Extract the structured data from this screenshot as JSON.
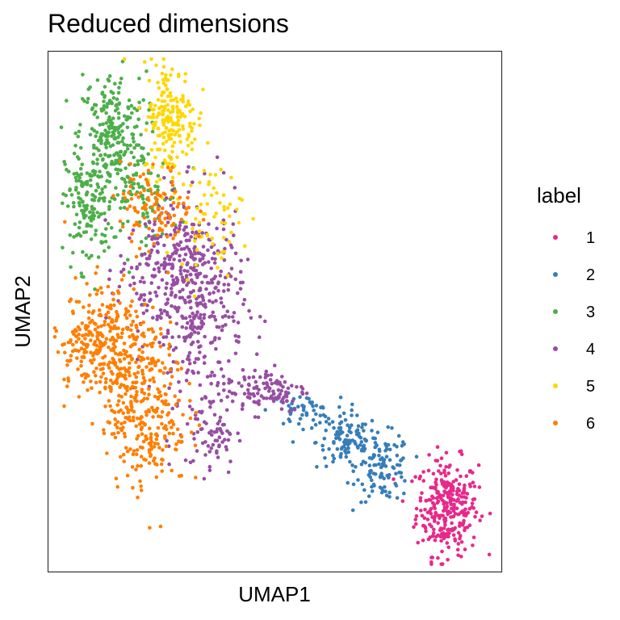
{
  "chart_data": {
    "type": "scatter",
    "title": "Reduced dimensions",
    "xlabel": "UMAP1",
    "ylabel": "UMAP2",
    "grid": false,
    "axis_ticks": false,
    "legend": {
      "title": "label",
      "placement": "right",
      "entries": [
        {
          "label": "1",
          "color": "#e7298a"
        },
        {
          "label": "2",
          "color": "#377eb8"
        },
        {
          "label": "3",
          "color": "#4daf4a"
        },
        {
          "label": "4",
          "color": "#984ea3"
        },
        {
          "label": "5",
          "color": "#ffd700"
        },
        {
          "label": "6",
          "color": "#ff7f00"
        }
      ]
    },
    "xlim": [
      0,
      100
    ],
    "ylim": [
      0,
      100
    ],
    "series": [
      {
        "name": "1",
        "color": "#e7298a",
        "n": 300,
        "clusters": [
          {
            "cx": 88,
            "cy": 12.5,
            "sx": 3.4,
            "sy": 4.6,
            "w": 1
          }
        ]
      },
      {
        "name": "2",
        "color": "#377eb8",
        "n": 270,
        "clusters": [
          {
            "cx": 66,
            "cy": 25,
            "sx": 3.4,
            "sy": 2.6,
            "w": 0.4
          },
          {
            "cx": 74,
            "cy": 20,
            "sx": 3.0,
            "sy": 3.2,
            "w": 0.4
          },
          {
            "cx": 56,
            "cy": 31,
            "sx": 3.5,
            "sy": 1.5,
            "w": 0.2
          }
        ]
      },
      {
        "name": "3",
        "color": "#4daf4a",
        "n": 480,
        "clusters": [
          {
            "cx": 14,
            "cy": 84,
            "sx": 3.8,
            "sy": 6.0,
            "w": 0.5
          },
          {
            "cx": 9,
            "cy": 70,
            "sx": 2.6,
            "sy": 6.0,
            "w": 0.3
          },
          {
            "cx": 20,
            "cy": 72,
            "sx": 4.6,
            "sy": 4.6,
            "w": 0.2
          }
        ]
      },
      {
        "name": "4",
        "color": "#984ea3",
        "n": 700,
        "clusters": [
          {
            "cx": 33,
            "cy": 52,
            "sx": 5.0,
            "sy": 9.5,
            "w": 0.55
          },
          {
            "cx": 24,
            "cy": 58,
            "sx": 4.4,
            "sy": 6.0,
            "w": 0.2
          },
          {
            "cx": 36,
            "cy": 27,
            "sx": 2.8,
            "sy": 4.2,
            "w": 0.1
          },
          {
            "cx": 48,
            "cy": 35,
            "sx": 4.6,
            "sy": 2.2,
            "w": 0.15
          }
        ]
      },
      {
        "name": "5",
        "color": "#ffd700",
        "n": 260,
        "clusters": [
          {
            "cx": 27,
            "cy": 87,
            "sx": 3.0,
            "sy": 5.6,
            "w": 0.75
          },
          {
            "cx": 36,
            "cy": 68,
            "sx": 3.5,
            "sy": 5.0,
            "w": 0.25
          }
        ]
      },
      {
        "name": "6",
        "color": "#ff7f00",
        "n": 720,
        "clusters": [
          {
            "cx": 14,
            "cy": 43,
            "sx": 5.2,
            "sy": 6.8,
            "w": 0.4
          },
          {
            "cx": 22,
            "cy": 30,
            "sx": 4.4,
            "sy": 7.0,
            "w": 0.35
          },
          {
            "cx": 8,
            "cy": 44,
            "sx": 2.6,
            "sy": 3.2,
            "w": 0.1
          },
          {
            "cx": 24,
            "cy": 70,
            "sx": 4.0,
            "sy": 4.0,
            "w": 0.15
          }
        ]
      }
    ]
  }
}
